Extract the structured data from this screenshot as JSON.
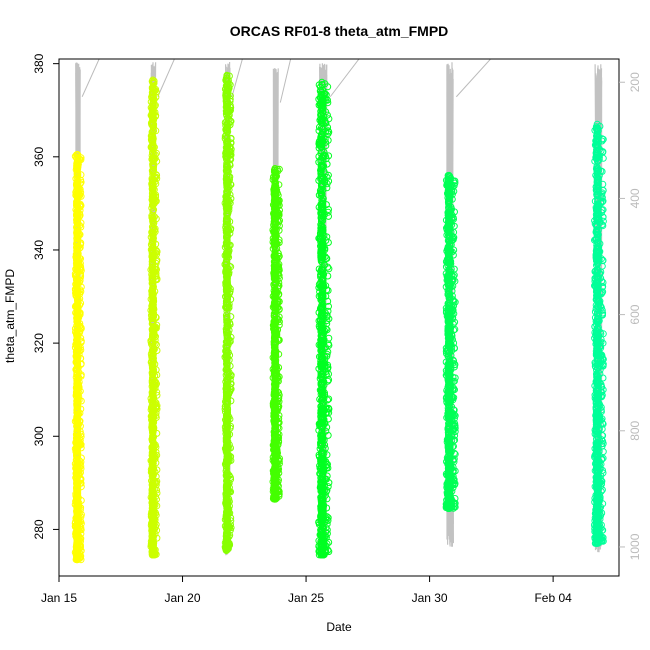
{
  "chart_data": {
    "type": "scatter",
    "title": "ORCAS RF01-8 theta_atm_FMPD",
    "xlabel": "Date",
    "ylabel": "theta_atm_FMPD",
    "xlim": [
      "2016-01-15T00:00",
      "2016-02-06T16:00"
    ],
    "ylim": [
      270,
      381
    ],
    "x_ticks": [
      {
        "label": "Jan 15",
        "date": "2016-01-15T00:00"
      },
      {
        "label": "Jan 20",
        "date": "2016-01-20T00:00"
      },
      {
        "label": "Jan 25",
        "date": "2016-01-25T00:00"
      },
      {
        "label": "Jan 30",
        "date": "2016-01-30T00:00"
      },
      {
        "label": "Feb 04",
        "date": "2016-02-04T00:00"
      }
    ],
    "y_ticks": [
      280,
      300,
      320,
      340,
      360,
      380
    ],
    "right_axis": {
      "color": "#bbbbbb",
      "reversed": true,
      "range": [
        1050,
        160
      ],
      "ticks": [
        200,
        400,
        600,
        800,
        1000
      ]
    },
    "pressure_color": "#bbbbbb",
    "grid": false,
    "series": [
      {
        "color": "#FFFF00",
        "start": "2016-01-15T15:00",
        "end": "2016-01-15T22:30",
        "theta_min": 273.5,
        "theta_max": 360.5,
        "pressure_min": 165,
        "pressure_max": 1015
      },
      {
        "color": "#CCFF00",
        "start": "2016-01-18T16:30",
        "end": "2016-01-19T00:00",
        "theta_min": 274.5,
        "theta_max": 376.5,
        "pressure_min": 165,
        "pressure_max": 1015
      },
      {
        "color": "#88FF00",
        "start": "2016-01-21T16:30",
        "end": "2016-01-22T00:00",
        "theta_min": 275.5,
        "theta_max": 377.5,
        "pressure_min": 165,
        "pressure_max": 1015
      },
      {
        "color": "#44FF00",
        "start": "2016-01-23T15:00",
        "end": "2016-01-23T23:00",
        "theta_min": 286.5,
        "theta_max": 357.5,
        "pressure_min": 175,
        "pressure_max": 910
      },
      {
        "color": "#00FF22",
        "start": "2016-01-25T11:00",
        "end": "2016-01-25T23:30",
        "theta_min": 274.5,
        "theta_max": 376.0,
        "pressure_min": 165,
        "pressure_max": 1010
      },
      {
        "color": "#00FF55",
        "start": "2016-01-30T15:00",
        "end": "2016-01-31T02:00",
        "theta_min": 284.5,
        "theta_max": 356.0,
        "pressure_min": 165,
        "pressure_max": 1000
      },
      {
        "color": "#00FF99",
        "start": "2016-02-05T15:00",
        "end": "2016-02-06T02:00",
        "theta_min": 277.0,
        "theta_max": 367.0,
        "pressure_min": 165,
        "pressure_max": 1010
      }
    ]
  }
}
